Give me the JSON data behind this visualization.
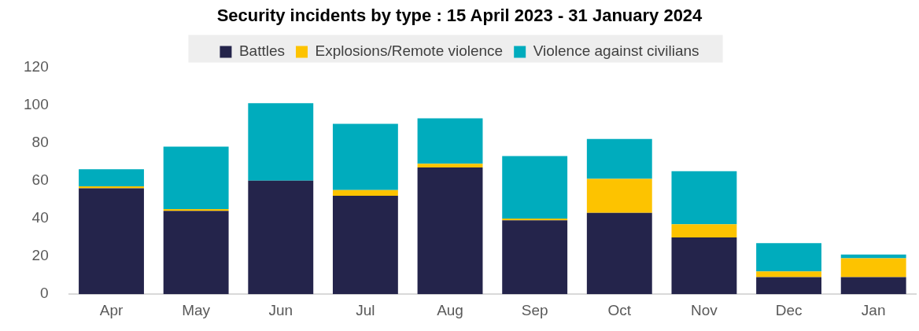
{
  "chart_data": {
    "type": "bar",
    "title": "Security incidents by type : 15 April 2023 - 31 January 2024",
    "categories": [
      "Apr",
      "May",
      "Jun",
      "Jul",
      "Aug",
      "Sep",
      "Oct",
      "Nov",
      "Dec",
      "Jan"
    ],
    "series": [
      {
        "name": "Battles",
        "color": "#24244b",
        "values": [
          56,
          44,
          60,
          52,
          67,
          39,
          43,
          30,
          9,
          9
        ]
      },
      {
        "name": "Explosions/Remote violence",
        "color": "#fdc300",
        "values": [
          1,
          1,
          0,
          3,
          2,
          1,
          18,
          7,
          3,
          10
        ]
      },
      {
        "name": "Violence against civilians",
        "color": "#00acbd",
        "values": [
          9,
          33,
          41,
          35,
          24,
          33,
          21,
          28,
          15,
          2
        ]
      }
    ],
    "stacked": true,
    "ylim": [
      0,
      120
    ],
    "yticks": [
      0,
      20,
      40,
      60,
      80,
      100,
      120
    ],
    "grid": false,
    "legend": "top"
  }
}
